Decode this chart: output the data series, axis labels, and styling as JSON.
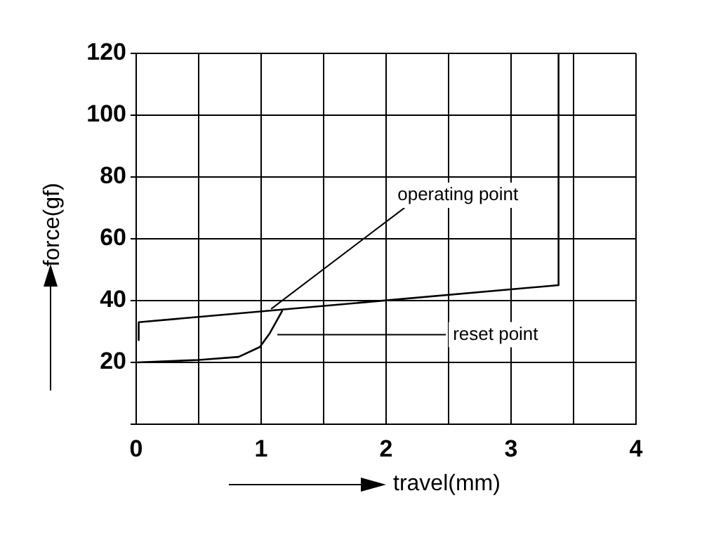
{
  "chart_data": {
    "type": "line",
    "xlabel": "travel(mm)",
    "ylabel": "force(gf)",
    "xlim": [
      0,
      4
    ],
    "ylim": [
      0,
      120
    ],
    "xticks": [
      0,
      {
        "value": 0.5,
        "label": null
      },
      1,
      {
        "value": 1.5,
        "label": null
      },
      2,
      {
        "value": 2.5,
        "label": null
      },
      3,
      {
        "value": 3.5,
        "label": null
      },
      4
    ],
    "yticks": [
      {
        "value": 0,
        "label": null
      },
      20,
      40,
      60,
      80,
      100,
      120
    ],
    "grid": true,
    "legend": false,
    "marker": "none",
    "line_style": "solid",
    "series": [
      {
        "color": "#000000",
        "x": [
          0.02,
          0.02,
          3.38,
          3.38
        ],
        "values": [
          27,
          33,
          45,
          120
        ]
      },
      {
        "color": "#000000",
        "x": [
          0.01,
          0.5,
          0.82,
          0.99,
          1.07,
          1.17
        ],
        "values": [
          20,
          20.8,
          21.8,
          25,
          29.5,
          36.8
        ]
      }
    ],
    "annotations": [
      {
        "text": "operating point",
        "x": 1.08,
        "y": 37.3
      },
      {
        "text": "reset point",
        "x": 1.13,
        "y": 29
      }
    ]
  }
}
